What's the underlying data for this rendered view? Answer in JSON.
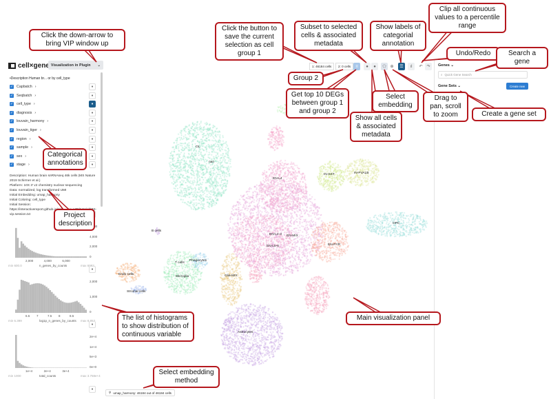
{
  "app": {
    "logo": "cell×gene",
    "vip_label": "Visualization in Plugin"
  },
  "left": {
    "description_line": "•Description  Human br... or by cell_type",
    "categories": [
      "Capbatch",
      "Seqbatch",
      "cell_type",
      "diagnosis",
      "louvain_harmony",
      "louvain_tiger",
      "region",
      "sample",
      "sex",
      "stage"
    ],
    "active_category": "cell_type",
    "project_description": [
      "Description: Human brain snRNAseq 46k cells (MS Nature 2019 Schirmer et al.)",
      "Platform: 10X 3' v2 chemistry nuclear sequencing",
      "Data: normalized, log transformed UMI",
      "Initial Embedding: umap_harmony",
      "Initial Coloring: cell_type",
      "Initial Session:",
      "https://interactivereport.github.io/cellxgene_VIP/tutorial/MS-vip.session.txt"
    ],
    "histograms": [
      {
        "name": "n_genes_by_counts",
        "min": "min 600.0",
        "max": "max 6993",
        "yticks": [
          "6,000",
          "4,000",
          "2,000",
          "0"
        ],
        "xticks": [
          "2,000",
          "4,000",
          "6,000"
        ]
      },
      {
        "name": "log1p_n_genes_by_counts",
        "min": "min 6.399",
        "max": "max 8.853",
        "yticks": [
          "2,000",
          "1,000",
          "0"
        ],
        "xticks": [
          "6.5",
          "7",
          "7.5",
          "8",
          "8.5"
        ]
      },
      {
        "name": "total_counts",
        "min": "min 1000",
        "max": "max 3.758e+4",
        "yticks": [
          "2e+4",
          "1e+4",
          "5e+3",
          "0e+0"
        ],
        "xticks": [
          "1e+4",
          "2e+4",
          "3e+4"
        ]
      }
    ]
  },
  "toolbar": {
    "group1": "1: 46184 cells",
    "group2": "2: 0 cells"
  },
  "right": {
    "genes": "Genes ⌄",
    "search_placeholder": "Quick Gene Search",
    "gene_sets": "Gene Sets ⌄",
    "create_new": "Create new"
  },
  "embedding_status": "umap_harmony: 46184 out of 46184 cells",
  "clusters": [
    "OL",
    "nan",
    "EN-L4",
    "IN-SST",
    "IN-PVALB",
    "OPC",
    "B cells",
    "EN-L2-3",
    "EN-MIX",
    "EN-L5-6",
    "EN-PYR",
    "T cells",
    "Phagocytes",
    "Endo cells",
    "Microglia",
    "Glia-MIX",
    "Stromal cells",
    "Astrocytes"
  ],
  "callouts": {
    "vip": "Click the down-arrow to bring VIP window up",
    "save_group1": "Click the button to save the current selection as cell group 1",
    "subset": "Subset to selected cells & associated metadata",
    "show_labels": "Show labels of categorial annotation",
    "clip": "Clip all continuous values to a percentile range",
    "undo_redo": "Undo/Redo",
    "search_gene": "Search a gene",
    "group2": "Group 2",
    "degs": "Get top 10 DEGs between group 1 and group 2",
    "select_embedding": "Select embedding",
    "pan_zoom": "Drag to pan, scroll to zoom",
    "show_all": "Show all cells & associated metadata",
    "create_gene_set": "Create a gene set",
    "categorical": "Categorical annotations",
    "project_desc": "Project description",
    "histograms": "The list of histograms to show distribution of continuous variable",
    "main_panel": "Main visualization panel",
    "embedding_method": "Select embedding method"
  },
  "colors": {
    "accent": "#2d7dd2",
    "active": "#1b5d8c",
    "callout_border": "#b5171d"
  }
}
